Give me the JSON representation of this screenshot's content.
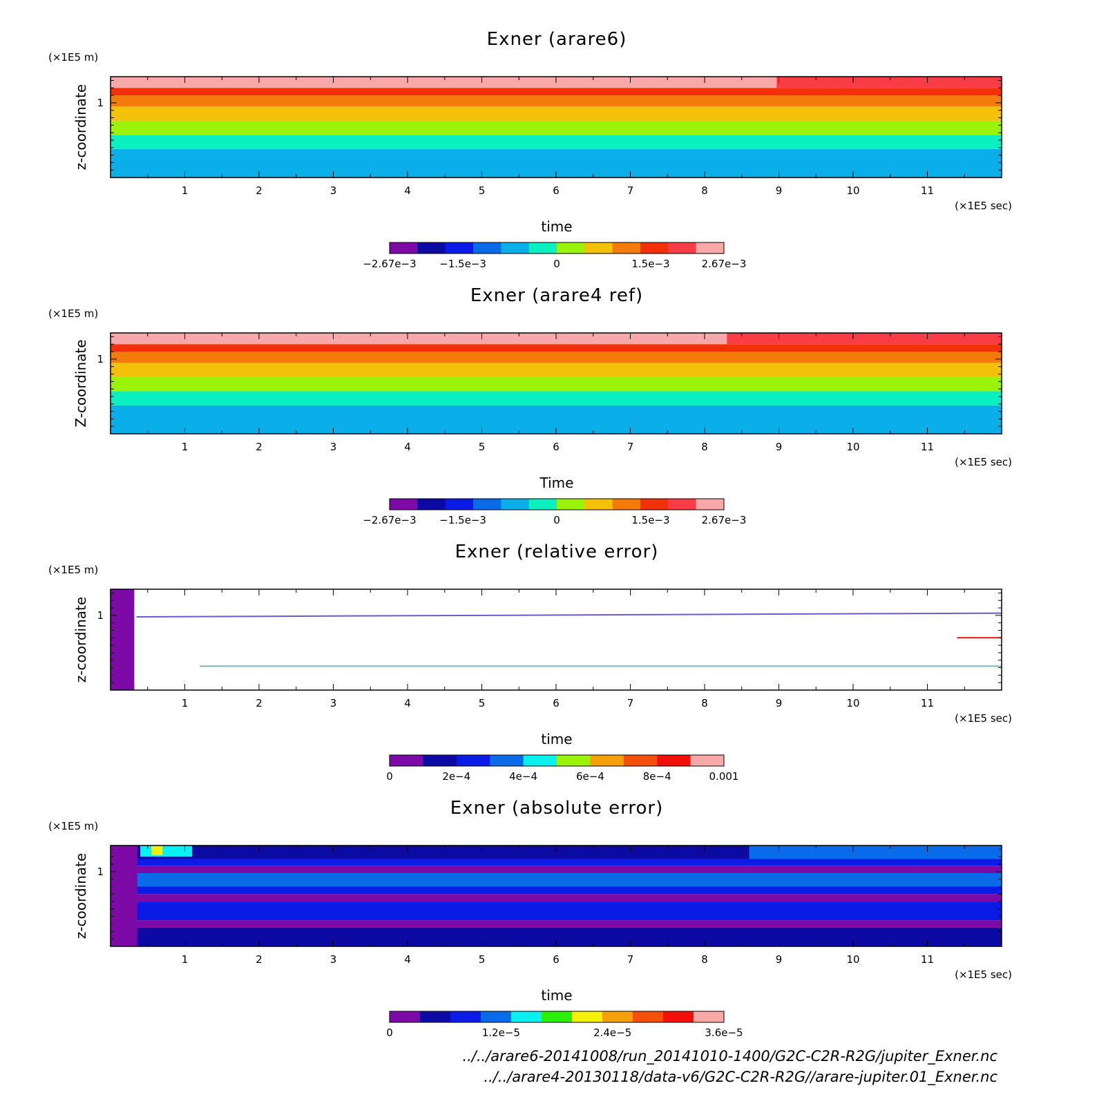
{
  "panels": [
    {
      "title": "Exner (arare6)",
      "yunit": "(×1E5 m)",
      "ylabel": "z-coordinate",
      "xunit": "(×1E5 sec)",
      "xlabel": "time",
      "yticks": [
        "1"
      ],
      "colorbar": {
        "colors": [
          "#7d0aa7",
          "#0c0aa3",
          "#0a1be6",
          "#0a6be9",
          "#0aaee8",
          "#0af0c0",
          "#9cf30a",
          "#f3c00a",
          "#f47a0a",
          "#f4300a",
          "#fa3c46",
          "#f8a8a8"
        ],
        "labels": [
          "−2.67e−3",
          "−1.5e−3",
          "0",
          "1.5e−3",
          "2.67e−3"
        ]
      }
    },
    {
      "title": "Exner (arare4 ref)",
      "yunit": "(×1E5 m)",
      "ylabel": "Z-coordinate",
      "xunit": "(×1E5 sec)",
      "xlabel": "Time",
      "yticks": [
        "1"
      ],
      "colorbar": {
        "colors": [
          "#7d0aa7",
          "#0c0aa3",
          "#0a1be6",
          "#0a6be9",
          "#0aaee8",
          "#0af0c0",
          "#9cf30a",
          "#f3c00a",
          "#f47a0a",
          "#f4300a",
          "#fa3c46",
          "#f8a8a8"
        ],
        "labels": [
          "−2.67e−3",
          "−1.5e−3",
          "0",
          "1.5e−3",
          "2.67e−3"
        ]
      }
    },
    {
      "title": "Exner (relative error)",
      "yunit": "(×1E5 m)",
      "ylabel": "z-coordinate",
      "xunit": "(×1E5 sec)",
      "xlabel": "time",
      "yticks": [
        "1"
      ],
      "colorbar": {
        "colors": [
          "#7d0aa7",
          "#0c0aa3",
          "#0a1be6",
          "#0a6be9",
          "#0af0f0",
          "#9cf30a",
          "#f3a00a",
          "#f4500a",
          "#f4100a",
          "#f8a8a8"
        ],
        "labels": [
          "0",
          "2e−4",
          "4e−4",
          "6e−4",
          "8e−4",
          "0.001"
        ]
      }
    },
    {
      "title": "Exner (absolute error)",
      "yunit": "(×1E5 m)",
      "ylabel": "z-coordinate",
      "xunit": "(×1E5 sec)",
      "xlabel": "time",
      "yticks": [
        "1"
      ],
      "colorbar": {
        "colors": [
          "#7d0aa7",
          "#0c0aa3",
          "#0a1be6",
          "#0a6be9",
          "#0af0f0",
          "#2cf00a",
          "#f3f00a",
          "#f4a00a",
          "#f4500a",
          "#f4100a",
          "#f8a8a8"
        ],
        "labels": [
          "0",
          "1.2e−5",
          "2.4e−5",
          "3.6e−5"
        ]
      }
    }
  ],
  "chart_data": [
    {
      "type": "heatmap",
      "title": "Exner (arare6)",
      "xlabel": "time",
      "ylabel": "z-coordinate",
      "x_unit": "(×1E5 sec)",
      "y_unit": "(×1E5 m)",
      "xlim": [
        0,
        12
      ],
      "ylim": [
        0,
        1.35
      ],
      "xticks": [
        1,
        2,
        3,
        4,
        5,
        6,
        7,
        8,
        9,
        10,
        11
      ],
      "yticks": [
        1
      ],
      "levels": [
        -0.00267,
        -0.0015,
        0,
        0.0015,
        0.00267
      ],
      "bands": [
        {
          "z_from": 0.0,
          "z_to": 0.38,
          "color": "#0aaee8"
        },
        {
          "z_from": 0.38,
          "z_to": 0.57,
          "color": "#0af0c0"
        },
        {
          "z_from": 0.57,
          "z_to": 0.76,
          "color": "#9cf30a"
        },
        {
          "z_from": 0.76,
          "z_to": 0.95,
          "color": "#f3c00a"
        },
        {
          "z_from": 0.95,
          "z_to": 1.1,
          "color": "#f47a0a"
        },
        {
          "z_from": 1.1,
          "z_to": 1.2,
          "color": "#f4300a"
        },
        {
          "z_from": 1.2,
          "z_to": 1.35,
          "color": "#f8a8a8",
          "until_x": 8.97,
          "after_color": "#fa3c46"
        }
      ]
    },
    {
      "type": "heatmap",
      "title": "Exner (arare4 ref)",
      "xlabel": "Time",
      "ylabel": "Z-coordinate",
      "x_unit": "(×1E5 sec)",
      "y_unit": "(×1E5 m)",
      "xlim": [
        0,
        12
      ],
      "ylim": [
        0,
        1.35
      ],
      "xticks": [
        1,
        2,
        3,
        4,
        5,
        6,
        7,
        8,
        9,
        10,
        11
      ],
      "yticks": [
        1
      ],
      "levels": [
        -0.00267,
        -0.0015,
        0,
        0.0015,
        0.00267
      ],
      "bands": [
        {
          "z_from": 0.0,
          "z_to": 0.38,
          "color": "#0aaee8"
        },
        {
          "z_from": 0.38,
          "z_to": 0.57,
          "color": "#0af0c0"
        },
        {
          "z_from": 0.57,
          "z_to": 0.76,
          "color": "#9cf30a"
        },
        {
          "z_from": 0.76,
          "z_to": 0.95,
          "color": "#f3c00a"
        },
        {
          "z_from": 0.95,
          "z_to": 1.1,
          "color": "#f47a0a"
        },
        {
          "z_from": 1.1,
          "z_to": 1.2,
          "color": "#f4300a"
        },
        {
          "z_from": 1.2,
          "z_to": 1.35,
          "color": "#f8a8a8",
          "until_x": 8.3,
          "after_color": "#fa3c46"
        }
      ]
    },
    {
      "type": "heatmap",
      "title": "Exner (relative error)",
      "xlabel": "time",
      "ylabel": "z-coordinate",
      "x_unit": "(×1E5 sec)",
      "y_unit": "(×1E5 m)",
      "xlim": [
        0,
        12
      ],
      "ylim": [
        0,
        1.35
      ],
      "xticks": [
        1,
        2,
        3,
        4,
        5,
        6,
        7,
        8,
        9,
        10,
        11
      ],
      "yticks": [
        1
      ],
      "levels": [
        0,
        0.0002,
        0.0004,
        0.0006,
        0.0008,
        0.001
      ],
      "background": "#ffffff",
      "features": [
        {
          "kind": "region",
          "x_from": 0.0,
          "x_to": 0.32,
          "z_from": 0,
          "z_to": 1.35,
          "color": "#7d0aa7"
        },
        {
          "kind": "line",
          "x_from": 0.35,
          "x_to": 12,
          "z_start": 0.98,
          "z_end": 1.03,
          "color": "#6a5acd"
        },
        {
          "kind": "line",
          "x_from": 1.2,
          "x_to": 12,
          "z_start": 0.32,
          "z_end": 0.32,
          "color": "#7fb0c0"
        },
        {
          "kind": "line",
          "x_from": 11.4,
          "x_to": 12,
          "z_start": 0.7,
          "z_end": 0.7,
          "color": "#f4100a"
        }
      ]
    },
    {
      "type": "heatmap",
      "title": "Exner (absolute error)",
      "xlabel": "time",
      "ylabel": "z-coordinate",
      "x_unit": "(×1E5 sec)",
      "y_unit": "(×1E5 m)",
      "xlim": [
        0,
        12
      ],
      "ylim": [
        0,
        1.35
      ],
      "xticks": [
        1,
        2,
        3,
        4,
        5,
        6,
        7,
        8,
        9,
        10,
        11
      ],
      "yticks": [
        1
      ],
      "levels": [
        0,
        1.2e-05,
        2.4e-05,
        3.6e-05
      ],
      "bands": [
        {
          "z_from": 0.0,
          "z_to": 0.25,
          "color": "#0c0aa3"
        },
        {
          "z_from": 0.25,
          "z_to": 0.35,
          "color": "#7d0aa7"
        },
        {
          "z_from": 0.35,
          "z_to": 0.6,
          "color": "#0a1be6"
        },
        {
          "z_from": 0.6,
          "z_to": 0.7,
          "color": "#7d0aa7"
        },
        {
          "z_from": 0.7,
          "z_to": 0.8,
          "color": "#0a1be6"
        },
        {
          "z_from": 0.8,
          "z_to": 0.98,
          "color": "#0a6be9"
        },
        {
          "z_from": 0.98,
          "z_to": 1.08,
          "color": "#7d0aa7"
        },
        {
          "z_from": 1.08,
          "z_to": 1.17,
          "color": "#0a1be6"
        },
        {
          "z_from": 1.17,
          "z_to": 1.35,
          "color": "#0c0aa3",
          "until_x": 8.6,
          "after_color": "#0a6be9"
        }
      ],
      "features": [
        {
          "kind": "region",
          "x_from": 0.0,
          "x_to": 0.36,
          "z_from": 0,
          "z_to": 1.35,
          "color": "#7d0aa7"
        },
        {
          "kind": "region",
          "x_from": 0.4,
          "x_to": 1.1,
          "z_from": 1.2,
          "z_to": 1.35,
          "color": "#0af0f0"
        },
        {
          "kind": "region",
          "x_from": 0.55,
          "x_to": 0.7,
          "z_from": 1.22,
          "z_to": 1.35,
          "color": "#f3f00a"
        }
      ]
    }
  ],
  "footer": {
    "line1": "../../arare6-20141008/run_20141010-1400/G2C-C2R-R2G/jupiter_Exner.nc",
    "line2": "../../arare4-20130118/data-v6/G2C-C2R-R2G//arare-jupiter.01_Exner.nc"
  }
}
